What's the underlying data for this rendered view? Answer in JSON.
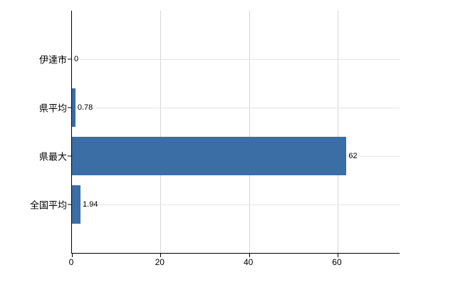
{
  "chart_data": {
    "type": "bar",
    "orientation": "horizontal",
    "title": "",
    "xlabel": "",
    "ylabel": "",
    "categories": [
      "伊達市",
      "県平均",
      "県最大",
      "全国平均"
    ],
    "values": [
      0,
      0.78,
      62,
      1.94
    ],
    "value_labels": [
      "0",
      "0.78",
      "62",
      "1.94"
    ],
    "xlim": [
      0,
      74
    ],
    "xticks": [
      0,
      20,
      40,
      60
    ],
    "xtick_labels": [
      "0",
      "20",
      "40",
      "60"
    ],
    "bar_color": "#3a6ea5",
    "grid": true,
    "gridline_color_vertical": "#d6d6d6",
    "gridline_color_horizontal": "#e6e6e6",
    "axis_color": "#000000",
    "background_color": "#ffffff",
    "legend": "none"
  }
}
